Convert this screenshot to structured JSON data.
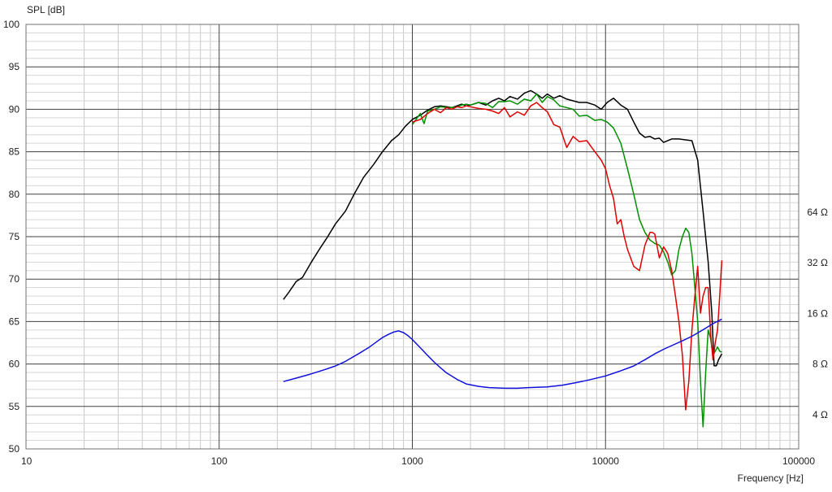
{
  "chart_data": {
    "type": "line",
    "ylabel": "SPL [dB]",
    "xlabel": "Frequency [Hz]",
    "x_scale": "log",
    "xlim": [
      10,
      100000
    ],
    "ylim": [
      50,
      100
    ],
    "grid": true,
    "x_ticks": [
      {
        "value": 10,
        "label": "10"
      },
      {
        "value": 100,
        "label": "100"
      },
      {
        "value": 1000,
        "label": "1000"
      },
      {
        "value": 10000,
        "label": "10000"
      },
      {
        "value": 100000,
        "label": "100000"
      }
    ],
    "y_ticks": [
      {
        "value": 100,
        "label": "100"
      },
      {
        "value": 95,
        "label": "95"
      },
      {
        "value": 90,
        "label": "90"
      },
      {
        "value": 85,
        "label": "85"
      },
      {
        "value": 80,
        "label": "80"
      },
      {
        "value": 75,
        "label": "75"
      },
      {
        "value": 70,
        "label": "70"
      },
      {
        "value": 65,
        "label": "65"
      },
      {
        "value": 60,
        "label": "60"
      },
      {
        "value": 55,
        "label": "55"
      },
      {
        "value": 50,
        "label": "50"
      }
    ],
    "y2_scale": "log",
    "y2_ticks": [
      {
        "value": 64,
        "label": "64 Ω"
      },
      {
        "value": 32,
        "label": "32 Ω"
      },
      {
        "value": 16,
        "label": "16 Ω"
      },
      {
        "value": 8,
        "label": "8 Ω"
      },
      {
        "value": 4,
        "label": "4 Ω"
      }
    ],
    "series": [
      {
        "color": "#000000",
        "axis": "spl",
        "x": [
          215,
          230,
          250,
          270,
          300,
          330,
          360,
          400,
          450,
          500,
          560,
          630,
          700,
          780,
          850,
          920,
          1000,
          1100,
          1200,
          1300,
          1400,
          1500,
          1600,
          1700,
          1800,
          1900,
          2000,
          2200,
          2400,
          2600,
          2800,
          3000,
          3200,
          3500,
          3800,
          4100,
          4400,
          4700,
          5000,
          5400,
          5800,
          6300,
          6800,
          7300,
          8000,
          8800,
          9500,
          10200,
          11000,
          12000,
          13000,
          14000,
          15000,
          16000,
          17000,
          18000,
          19000,
          20000,
          22000,
          24000,
          26000,
          28000,
          30000,
          32000,
          34000,
          35500,
          36500,
          37500,
          38500,
          40000
        ],
        "y": [
          67.6,
          68.5,
          69.7,
          70.2,
          72.0,
          73.5,
          74.8,
          76.5,
          78.0,
          80.0,
          82.0,
          83.5,
          85.0,
          86.3,
          87.0,
          88.0,
          88.8,
          89.3,
          89.9,
          90.3,
          90.4,
          90.3,
          90.2,
          90.4,
          90.6,
          90.4,
          90.5,
          90.8,
          90.5,
          91.0,
          91.3,
          91.0,
          91.5,
          91.2,
          91.9,
          92.2,
          91.8,
          91.3,
          91.8,
          91.3,
          91.6,
          91.2,
          91.0,
          90.8,
          90.8,
          90.5,
          90.0,
          90.8,
          91.3,
          90.5,
          90.0,
          88.5,
          87.2,
          86.7,
          86.8,
          86.5,
          86.6,
          86.1,
          86.5,
          86.5,
          86.4,
          86.3,
          84.0,
          78.0,
          72.0,
          66.0,
          59.8,
          59.8,
          60.5,
          61.2
        ]
      },
      {
        "color": "#009000",
        "axis": "spl",
        "x": [
          1000,
          1100,
          1150,
          1200,
          1300,
          1400,
          1500,
          1600,
          1700,
          1800,
          1900,
          2000,
          2200,
          2400,
          2600,
          2800,
          3000,
          3200,
          3500,
          3800,
          4100,
          4400,
          4700,
          5000,
          5400,
          5800,
          6300,
          6800,
          7300,
          8000,
          8800,
          9500,
          10200,
          11000,
          12000,
          13000,
          14000,
          15000,
          16000,
          17000,
          18000,
          19000,
          20000,
          21000,
          22000,
          23000,
          24000,
          25000,
          26000,
          27000,
          28000,
          29000,
          30000,
          31000,
          32000,
          33000,
          34000,
          35000,
          36000,
          37000,
          38000,
          39000,
          40000
        ],
        "y": [
          88.2,
          89.5,
          88.3,
          89.8,
          90.0,
          90.3,
          90.2,
          90.2,
          90.3,
          90.5,
          90.6,
          90.5,
          90.8,
          90.7,
          90.2,
          90.9,
          90.9,
          91.0,
          90.6,
          91.2,
          91.0,
          91.8,
          90.8,
          91.5,
          91.1,
          90.4,
          90.2,
          90.0,
          89.2,
          89.3,
          88.7,
          88.8,
          88.5,
          87.8,
          86.0,
          83.0,
          80.0,
          77.0,
          75.5,
          74.6,
          74.2,
          74.0,
          73.2,
          72.0,
          70.5,
          71.0,
          73.5,
          75.0,
          76.0,
          75.5,
          73.0,
          69.0,
          65.0,
          58.0,
          52.6,
          59.0,
          64.0,
          63.0,
          61.0,
          61.5,
          62.0,
          61.5,
          61.4
        ]
      },
      {
        "color": "#e00000",
        "axis": "spl",
        "x": [
          1000,
          1100,
          1200,
          1300,
          1400,
          1500,
          1600,
          1700,
          1800,
          1900,
          2000,
          2200,
          2400,
          2600,
          2800,
          3000,
          3200,
          3500,
          3800,
          4100,
          4400,
          4700,
          5000,
          5400,
          5800,
          6300,
          6800,
          7300,
          8000,
          8800,
          9500,
          10000,
          10500,
          11000,
          11500,
          12000,
          12500,
          13000,
          14000,
          15000,
          16000,
          17000,
          17500,
          18000,
          19000,
          20000,
          21000,
          22000,
          23000,
          24000,
          25000,
          26000,
          27000,
          28000,
          29000,
          30000,
          31000,
          32000,
          33000,
          34000,
          35000,
          36000,
          37000,
          38000,
          39000,
          40000
        ],
        "y": [
          88.5,
          88.8,
          89.5,
          90.0,
          89.6,
          90.2,
          90.0,
          90.3,
          90.2,
          90.4,
          90.3,
          90.1,
          90.0,
          89.8,
          89.5,
          90.2,
          89.1,
          89.7,
          89.3,
          90.4,
          90.8,
          90.2,
          89.7,
          88.2,
          87.9,
          85.5,
          86.8,
          86.2,
          86.3,
          85.0,
          84.0,
          83.0,
          81.0,
          79.5,
          76.5,
          77.0,
          75.0,
          73.5,
          71.5,
          71.0,
          74.0,
          75.5,
          75.5,
          75.3,
          72.5,
          73.8,
          73.0,
          71.0,
          68.0,
          65.0,
          61.0,
          54.6,
          58.0,
          64.0,
          68.0,
          71.5,
          66.0,
          68.0,
          69.0,
          69.0,
          63.5,
          60.5,
          62.5,
          64.0,
          68.0,
          72.2
        ]
      },
      {
        "color": "#1010dd",
        "axis": "impedance",
        "x": [
          215,
          250,
          300,
          350,
          400,
          450,
          500,
          550,
          600,
          650,
          700,
          750,
          800,
          850,
          900,
          950,
          1000,
          1100,
          1200,
          1300,
          1400,
          1500,
          1700,
          1900,
          2200,
          2500,
          3000,
          3500,
          4000,
          5000,
          6000,
          7000,
          8000,
          10000,
          12000,
          14000,
          16000,
          18000,
          20000,
          22000,
          25000,
          28000,
          32000,
          36000,
          40000
        ],
        "y": [
          6.3,
          6.6,
          7.0,
          7.4,
          7.8,
          8.3,
          8.9,
          9.5,
          10.1,
          10.8,
          11.5,
          12.0,
          12.4,
          12.6,
          12.3,
          11.8,
          11.2,
          10.0,
          9.0,
          8.2,
          7.6,
          7.1,
          6.5,
          6.1,
          5.9,
          5.8,
          5.75,
          5.75,
          5.8,
          5.85,
          6.0,
          6.2,
          6.4,
          6.8,
          7.3,
          7.8,
          8.5,
          9.2,
          9.8,
          10.3,
          11.0,
          11.7,
          12.8,
          13.9,
          14.8
        ]
      }
    ]
  }
}
